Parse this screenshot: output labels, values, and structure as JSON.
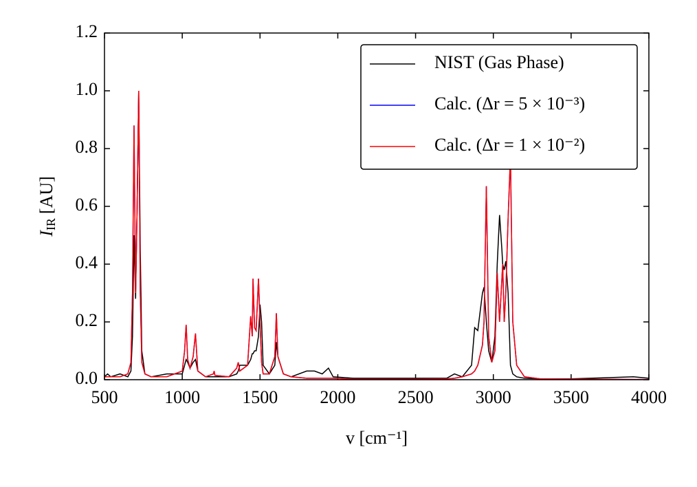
{
  "chart_data": {
    "type": "line",
    "ylabel": {
      "symbol": "I",
      "subscript": "IR",
      "unit": "[AU]"
    },
    "xlabel": "v [cm⁻¹]",
    "x": [
      500,
      520,
      540,
      600,
      650,
      670,
      680,
      690,
      700,
      710,
      720,
      730,
      740,
      760,
      800,
      900,
      1000,
      1015,
      1025,
      1035,
      1050,
      1070,
      1085,
      1100,
      1150,
      1200,
      1205,
      1210,
      1300,
      1350,
      1360,
      1370,
      1420,
      1440,
      1450,
      1455,
      1465,
      1475,
      1490,
      1500,
      1510,
      1520,
      1560,
      1595,
      1605,
      1615,
      1650,
      1700,
      1800,
      1850,
      1900,
      1940,
      1970,
      2100,
      2500,
      2700,
      2750,
      2800,
      2860,
      2880,
      2900,
      2930,
      2940,
      2955,
      2970,
      2990,
      3010,
      3025,
      3040,
      3055,
      3060,
      3070,
      3080,
      3095,
      3110,
      3125,
      3150,
      3200,
      3300,
      3500,
      3900,
      4000
    ],
    "series": [
      {
        "name": "NIST (Gas Phase)",
        "color": "#000000",
        "values": [
          0.01,
          0.02,
          0.01,
          0.02,
          0.01,
          0.03,
          0.15,
          0.5,
          0.28,
          0.6,
          1.0,
          0.45,
          0.1,
          0.02,
          0.01,
          0.02,
          0.02,
          0.05,
          0.07,
          0.06,
          0.04,
          0.06,
          0.07,
          0.03,
          0.01,
          0.01,
          0.01,
          0.01,
          0.01,
          0.02,
          0.03,
          0.05,
          0.05,
          0.07,
          0.09,
          0.09,
          0.1,
          0.1,
          0.15,
          0.26,
          0.2,
          0.05,
          0.02,
          0.05,
          0.13,
          0.08,
          0.02,
          0.01,
          0.03,
          0.03,
          0.02,
          0.04,
          0.01,
          0.005,
          0.005,
          0.005,
          0.02,
          0.01,
          0.05,
          0.18,
          0.17,
          0.3,
          0.32,
          0.2,
          0.1,
          0.06,
          0.15,
          0.4,
          0.57,
          0.45,
          0.4,
          0.38,
          0.41,
          0.3,
          0.05,
          0.02,
          0.01,
          0.005,
          0.003,
          0.003,
          0.01,
          0.005
        ]
      },
      {
        "name": "Calc. (Δr = 5 × 10⁻³)",
        "color": "#0000ff",
        "values": [
          0.01,
          0.01,
          0.01,
          0.01,
          0.02,
          0.06,
          0.3,
          0.88,
          0.3,
          0.6,
          1.0,
          0.3,
          0.06,
          0.02,
          0.01,
          0.01,
          0.03,
          0.1,
          0.19,
          0.07,
          0.04,
          0.08,
          0.16,
          0.03,
          0.01,
          0.02,
          0.03,
          0.015,
          0.01,
          0.04,
          0.06,
          0.03,
          0.05,
          0.22,
          0.15,
          0.35,
          0.18,
          0.17,
          0.35,
          0.2,
          0.06,
          0.02,
          0.02,
          0.08,
          0.23,
          0.08,
          0.02,
          0.01,
          0.005,
          0.005,
          0.005,
          0.005,
          0.005,
          0.002,
          0.002,
          0.003,
          0.005,
          0.01,
          0.02,
          0.03,
          0.05,
          0.12,
          0.2,
          0.67,
          0.15,
          0.06,
          0.1,
          0.37,
          0.2,
          0.35,
          0.4,
          0.2,
          0.3,
          0.56,
          0.77,
          0.2,
          0.05,
          0.01,
          0.003,
          0.002,
          0.001,
          0.001
        ]
      },
      {
        "name": "Calc. (Δr = 1 × 10⁻²)",
        "color": "#ff0000",
        "values": [
          0.01,
          0.01,
          0.01,
          0.01,
          0.02,
          0.06,
          0.3,
          0.88,
          0.3,
          0.6,
          1.0,
          0.3,
          0.06,
          0.02,
          0.01,
          0.01,
          0.03,
          0.1,
          0.19,
          0.07,
          0.04,
          0.08,
          0.16,
          0.03,
          0.01,
          0.02,
          0.03,
          0.015,
          0.01,
          0.04,
          0.06,
          0.03,
          0.05,
          0.22,
          0.15,
          0.35,
          0.18,
          0.17,
          0.35,
          0.2,
          0.06,
          0.02,
          0.02,
          0.08,
          0.23,
          0.08,
          0.02,
          0.01,
          0.005,
          0.005,
          0.005,
          0.005,
          0.005,
          0.002,
          0.002,
          0.003,
          0.005,
          0.01,
          0.02,
          0.03,
          0.05,
          0.12,
          0.2,
          0.67,
          0.15,
          0.06,
          0.1,
          0.37,
          0.2,
          0.35,
          0.4,
          0.2,
          0.3,
          0.56,
          0.78,
          0.2,
          0.05,
          0.01,
          0.003,
          0.002,
          0.001,
          0.001
        ]
      }
    ],
    "xlim": [
      500,
      4000
    ],
    "xticks": [
      500,
      1000,
      1500,
      2000,
      2500,
      3000,
      3500,
      4000
    ],
    "ylim": [
      0,
      1.2
    ],
    "yticks": [
      {
        "value": 0,
        "label": "0.0"
      },
      {
        "value": 0.2,
        "label": "0.2"
      },
      {
        "value": 0.4,
        "label": "0.4"
      },
      {
        "value": 0.6,
        "label": "0.6"
      },
      {
        "value": 0.8,
        "label": "0.8"
      },
      {
        "value": 1,
        "label": "1.0"
      },
      {
        "value": 1.2,
        "label": "1.2"
      }
    ],
    "grid": false,
    "legend": "upper right"
  }
}
